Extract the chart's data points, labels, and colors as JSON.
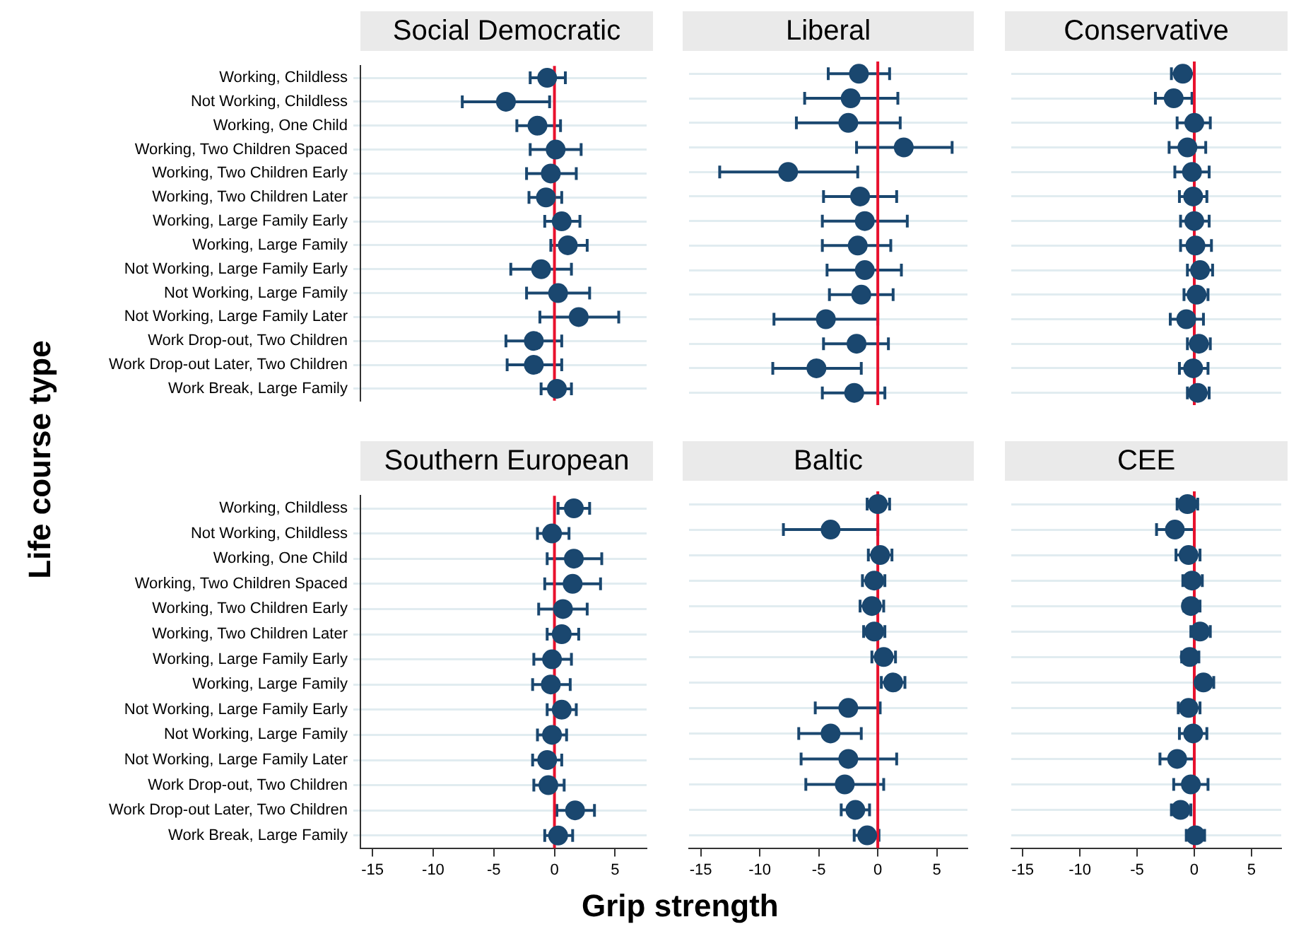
{
  "chart_data": [
    {
      "type": "scatter",
      "orientation": "horizontal",
      "title": "Social Democratic",
      "ylabel": "Life course type",
      "categories": [
        "Working, Childless",
        "Not Working, Childless",
        "Working, One Child",
        "Working, Two Children Spaced",
        "Working, Two Children Early",
        "Working, Two Children Later",
        "Working, Large Family Early",
        "Working, Large Family",
        "Not Working, Large Family Early",
        "Not Working, Large Family",
        "Not Working, Large Family Later",
        "Work Drop-out, Two Children",
        "Work Drop-out Later, Two Children",
        "Work Break, Large Family"
      ],
      "values": [
        -0.6,
        -4.0,
        -1.4,
        0.1,
        -0.3,
        -0.7,
        0.6,
        1.1,
        -1.1,
        0.3,
        2.0,
        -1.7,
        -1.7,
        0.2
      ],
      "errors": [
        [
          -2.0,
          0.9
        ],
        [
          -7.6,
          -0.4
        ],
        [
          -3.1,
          0.5
        ],
        [
          -2.0,
          2.2
        ],
        [
          -2.3,
          1.8
        ],
        [
          -2.1,
          0.6
        ],
        [
          -0.8,
          2.1
        ],
        [
          -0.3,
          2.7
        ],
        [
          -3.6,
          1.4
        ],
        [
          -2.3,
          2.9
        ],
        [
          -1.2,
          5.3
        ],
        [
          -4.0,
          0.6
        ],
        [
          -3.9,
          0.6
        ],
        [
          -1.1,
          1.4
        ]
      ],
      "color": "#1a476f",
      "marker": "circle",
      "grid": "y",
      "xlim": [
        -16,
        7.6
      ],
      "xticks": [
        -15,
        -10,
        -5,
        0,
        5
      ],
      "ref_lines": [
        {
          "axis": "x",
          "value": 0,
          "color": "#e8112d"
        }
      ],
      "tick_labels": "y"
    },
    {
      "type": "scatter",
      "orientation": "horizontal",
      "title": "Liberal",
      "categories": [
        null,
        null,
        null,
        null,
        null,
        null,
        null,
        null,
        null,
        null,
        null,
        null,
        null,
        null
      ],
      "values": [
        -1.6,
        -2.3,
        -2.5,
        2.2,
        -7.6,
        -1.5,
        -1.1,
        -1.7,
        -1.1,
        -1.4,
        -4.4,
        -1.8,
        -5.2,
        -2.0
      ],
      "errors": [
        [
          -4.2,
          1.0
        ],
        [
          -6.2,
          1.7
        ],
        [
          -6.9,
          1.9
        ],
        [
          -1.8,
          6.3
        ],
        [
          -13.4,
          -1.7
        ],
        [
          -4.6,
          1.6
        ],
        [
          -4.7,
          2.5
        ],
        [
          -4.7,
          1.1
        ],
        [
          -4.3,
          2.0
        ],
        [
          -4.1,
          1.3
        ],
        [
          -8.8,
          0.0
        ],
        [
          -4.6,
          0.9
        ],
        [
          -8.9,
          -1.4
        ],
        [
          -4.7,
          0.6
        ]
      ],
      "color": "#1a476f",
      "marker": "circle",
      "grid": "y",
      "xlim": [
        -16,
        7.6
      ],
      "xticks": [
        -15,
        -10,
        -5,
        0,
        5
      ],
      "ref_lines": [
        {
          "axis": "x",
          "value": 0,
          "color": "#e8112d"
        }
      ],
      "tick_labels": false
    },
    {
      "type": "scatter",
      "orientation": "horizontal",
      "title": "Conservative",
      "categories": [
        null,
        null,
        null,
        null,
        null,
        null,
        null,
        null,
        null,
        null,
        null,
        null,
        null,
        null
      ],
      "values": [
        -1.0,
        -1.8,
        0.0,
        -0.6,
        -0.2,
        -0.1,
        0.0,
        0.1,
        0.5,
        0.2,
        -0.7,
        0.4,
        -0.1,
        0.3
      ],
      "errors": [
        [
          -2.0,
          0.0
        ],
        [
          -3.4,
          -0.2
        ],
        [
          -1.5,
          1.4
        ],
        [
          -2.2,
          1.0
        ],
        [
          -1.7,
          1.3
        ],
        [
          -1.3,
          1.1
        ],
        [
          -1.2,
          1.3
        ],
        [
          -1.2,
          1.5
        ],
        [
          -0.6,
          1.6
        ],
        [
          -0.9,
          1.2
        ],
        [
          -2.1,
          0.8
        ],
        [
          -0.6,
          1.4
        ],
        [
          -1.3,
          1.2
        ],
        [
          -0.6,
          1.3
        ]
      ],
      "color": "#1a476f",
      "marker": "circle",
      "grid": "y",
      "xlim": [
        -16,
        7.6
      ],
      "xticks": [
        -15,
        -10,
        -5,
        0,
        5
      ],
      "ref_lines": [
        {
          "axis": "x",
          "value": 0,
          "color": "#e8112d"
        }
      ],
      "tick_labels": false
    },
    {
      "type": "scatter",
      "orientation": "horizontal",
      "title": "Southern European",
      "categories": [
        "Working, Childless",
        "Not Working, Childless",
        "Working, One Child",
        "Working, Two Children Spaced",
        "Working, Two Children Early",
        "Working, Two Children Later",
        "Working, Large Family Early",
        "Working, Large Family",
        "Not Working, Large Family Early",
        "Not Working, Large Family",
        "Not Working, Large Family Later",
        "Work Drop-out, Two Children",
        "Work Drop-out Later, Two Children",
        "Work Break, Large Family"
      ],
      "values": [
        1.6,
        -0.2,
        1.6,
        1.5,
        0.7,
        0.6,
        -0.2,
        -0.3,
        0.6,
        -0.2,
        -0.6,
        -0.5,
        1.7,
        0.3
      ],
      "errors": [
        [
          0.3,
          2.9
        ],
        [
          -1.4,
          1.2
        ],
        [
          -0.6,
          3.9
        ],
        [
          -0.8,
          3.8
        ],
        [
          -1.3,
          2.7
        ],
        [
          -0.6,
          2.0
        ],
        [
          -1.7,
          1.4
        ],
        [
          -1.8,
          1.3
        ],
        [
          -0.6,
          1.8
        ],
        [
          -1.4,
          1.0
        ],
        [
          -1.8,
          0.6
        ],
        [
          -1.7,
          0.8
        ],
        [
          0.2,
          3.3
        ],
        [
          -0.8,
          1.5
        ]
      ],
      "color": "#1a476f",
      "marker": "circle",
      "grid": "y",
      "xlim": [
        -16,
        7.6
      ],
      "xticks": [
        -15,
        -10,
        -5,
        0,
        5
      ],
      "ref_lines": [
        {
          "axis": "x",
          "value": 0,
          "color": "#e8112d"
        }
      ]
    },
    {
      "type": "scatter",
      "orientation": "horizontal",
      "title": "Baltic",
      "xlabel": "Grip strength",
      "categories": [
        null,
        null,
        null,
        null,
        null,
        null,
        null,
        null,
        null,
        null,
        null,
        null,
        null,
        null
      ],
      "values": [
        0.0,
        -4.0,
        0.2,
        -0.3,
        -0.5,
        -0.3,
        0.5,
        1.3,
        -2.5,
        -4.0,
        -2.5,
        -2.8,
        -1.9,
        -0.9
      ],
      "errors": [
        [
          -0.9,
          1.0
        ],
        [
          -8.0,
          0.0
        ],
        [
          -0.8,
          1.2
        ],
        [
          -1.3,
          0.6
        ],
        [
          -1.5,
          0.5
        ],
        [
          -1.2,
          0.6
        ],
        [
          -0.5,
          1.5
        ],
        [
          0.3,
          2.3
        ],
        [
          -5.3,
          0.2
        ],
        [
          -6.7,
          -1.4
        ],
        [
          -6.5,
          1.6
        ],
        [
          -6.1,
          0.5
        ],
        [
          -3.1,
          -0.7
        ],
        [
          -2.0,
          0.1
        ]
      ],
      "color": "#1a476f",
      "marker": "circle",
      "grid": "y",
      "xlim": [
        -16,
        7.6
      ],
      "xticks": [
        -15,
        -10,
        -5,
        0,
        5
      ],
      "ref_lines": [
        {
          "axis": "x",
          "value": 0,
          "color": "#e8112d"
        }
      ],
      "tick_labels": "x"
    },
    {
      "type": "scatter",
      "orientation": "horizontal",
      "title": "CEE",
      "categories": [
        null,
        null,
        null,
        null,
        null,
        null,
        null,
        null,
        null,
        null,
        null,
        null,
        null,
        null
      ],
      "values": [
        -0.6,
        -1.7,
        -0.5,
        -0.2,
        -0.3,
        0.5,
        -0.4,
        0.8,
        -0.5,
        -0.1,
        -1.5,
        -0.3,
        -1.2,
        0.1
      ],
      "errors": [
        [
          -1.5,
          0.3
        ],
        [
          -3.3,
          0.0
        ],
        [
          -1.6,
          0.5
        ],
        [
          -1.0,
          0.7
        ],
        [
          -0.9,
          0.5
        ],
        [
          -0.3,
          1.4
        ],
        [
          -1.1,
          0.4
        ],
        [
          0.0,
          1.7
        ],
        [
          -1.4,
          0.5
        ],
        [
          -1.3,
          1.1
        ],
        [
          -3.0,
          0.0
        ],
        [
          -1.8,
          1.2
        ],
        [
          -2.0,
          -0.3
        ],
        [
          -0.7,
          0.9
        ]
      ],
      "color": "#1a476f",
      "marker": "circle",
      "grid": "y",
      "xlim": [
        -16,
        7.6
      ],
      "xticks": [
        -15,
        -10,
        -5,
        0,
        5
      ],
      "ref_lines": [
        {
          "axis": "x",
          "value": 0,
          "color": "#e8112d"
        }
      ],
      "tick_labels": "x"
    }
  ]
}
